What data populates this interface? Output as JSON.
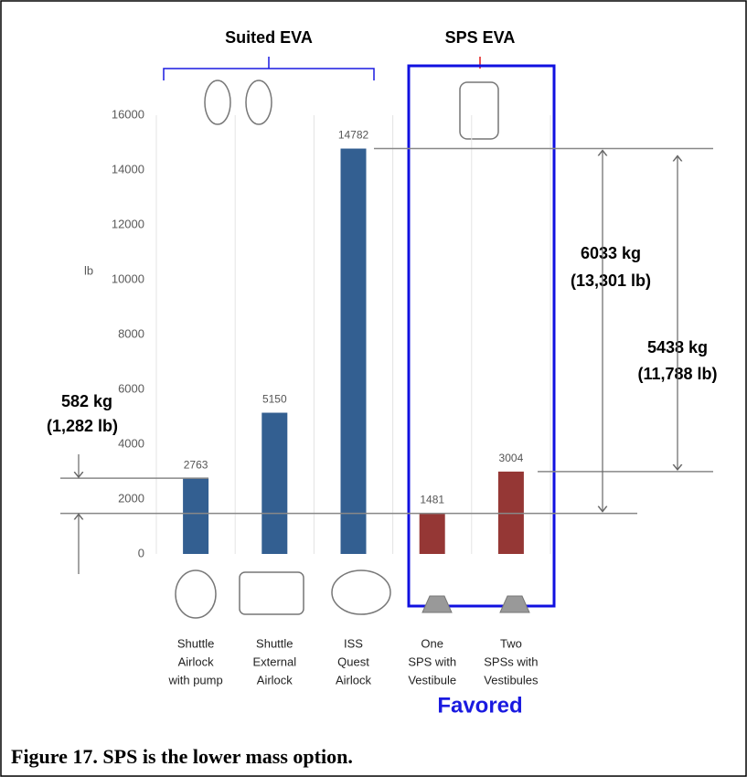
{
  "chart_data": {
    "type": "bar",
    "y_label": "lb",
    "categories": [
      [
        "Shuttle",
        "Airlock",
        "with pump"
      ],
      [
        "Shuttle",
        "External",
        "Airlock"
      ],
      [
        "ISS",
        "Quest",
        "Airlock"
      ],
      [
        "One",
        "SPS with",
        "Vestibule"
      ],
      [
        "Two",
        "SPSs with",
        "Vestibules"
      ]
    ],
    "values": [
      2763,
      5150,
      14782,
      1481,
      3004
    ],
    "colors": [
      "#335f91",
      "#335f91",
      "#335f91",
      "#953735",
      "#953735"
    ],
    "ylim": [
      0,
      16000
    ],
    "yticks": [
      0,
      2000,
      4000,
      6000,
      8000,
      10000,
      12000,
      14000,
      16000
    ],
    "grid": true,
    "group_labels": [
      "Suited EVA",
      "SPS EVA"
    ],
    "annotations": {
      "left": [
        "582 kg",
        "(1,282 lb)"
      ],
      "right_outer": [
        "6033 kg",
        "(13,301 lb)"
      ],
      "right_inner": [
        "5438 kg",
        "(11,788 lb)"
      ],
      "favored": "Favored"
    },
    "caption": "Figure 17. SPS is the lower mass option."
  }
}
